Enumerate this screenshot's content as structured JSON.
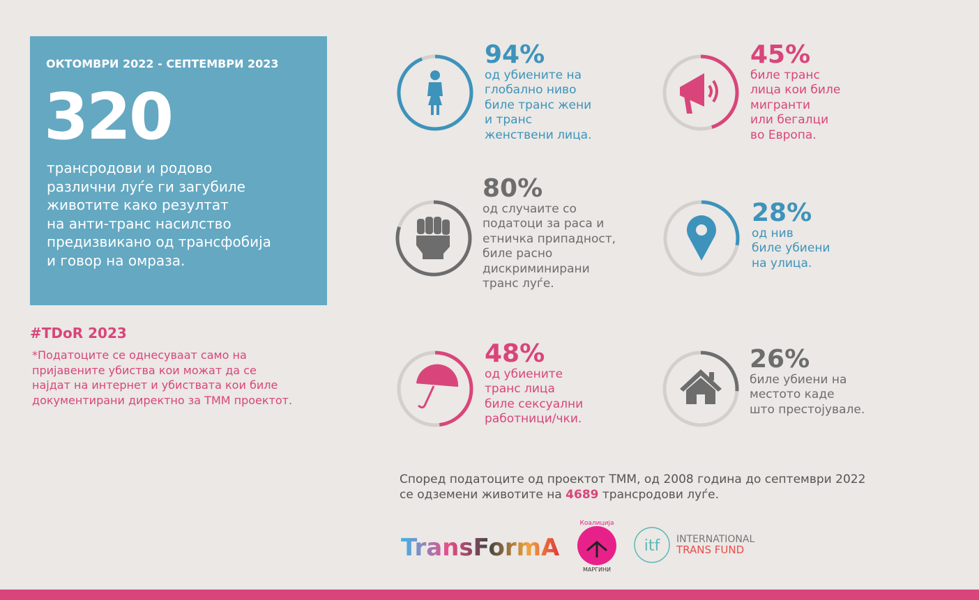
{
  "header": {
    "period": "ОКТОМВРИ 2022 - СЕПТЕМВРИ 2023",
    "number": "320",
    "description": [
      "трансродови и родово",
      "различни луѓе ги загубиле",
      "животите како резултат",
      "на анти-транс насилство",
      "предизвикано од трансфобија",
      "и говор на омраза."
    ]
  },
  "hashtag": "#TDoR 2023",
  "footnote": [
    "*Податоците се однесуваат само на",
    "пријавените убиства кои можат да се",
    "најдат на интернет и убиствата кои биле",
    "документирани директно за ТММ проектот."
  ],
  "stats": [
    {
      "percent": {
        "value": 94,
        "label": "94%"
      },
      "lines": [
        "од убиените на",
        "глобално ниво",
        "биле транс жени",
        "и транс",
        "женствени лица."
      ],
      "color": "#3d93bb"
    },
    {
      "percent": {
        "value": 45,
        "label": "45%"
      },
      "lines": [
        "биле транс",
        "лица кои биле",
        "мигранти",
        "или бегалци",
        "во Европа."
      ],
      "color": "#d9457a"
    },
    {
      "percent": {
        "value": 80,
        "label": "80%"
      },
      "lines": [
        "од случаите со",
        "податоци за раса и",
        "етничка припадност,",
        "биле расно",
        "дискриминирани",
        "транс луѓе."
      ],
      "color": "#6d6d6d"
    },
    {
      "percent": {
        "value": 28,
        "label": "28%"
      },
      "lines": [
        "од нив",
        "биле убиени",
        "на улица."
      ],
      "color": "#3d93bb"
    },
    {
      "percent": {
        "value": 48,
        "label": "48%"
      },
      "lines": [
        "од убиените",
        "транс лица",
        "биле сексуални",
        "работници/чки."
      ],
      "color": "#d9457a"
    },
    {
      "percent": {
        "value": 26,
        "label": "26%"
      },
      "lines": [
        "биле убиени на",
        "местото каде",
        "што престојувале."
      ],
      "color": "#6d6d6d"
    }
  ],
  "footer": {
    "line1": "Според податоците од проектот ТММ, од 2008 година до септември 2022",
    "line2_before": "се одземени животите на",
    "line2_highlight": "4689",
    "line2_after": "трансродови луѓе."
  },
  "logos": {
    "transforma": "TransFormA",
    "koalicija_top": "Коалиција",
    "koalicija_bottom": "МАРГИНИ",
    "itf_mark": "itf",
    "itf_line1": "INTERNATIONAL",
    "itf_line2": "TRANS FUND"
  }
}
